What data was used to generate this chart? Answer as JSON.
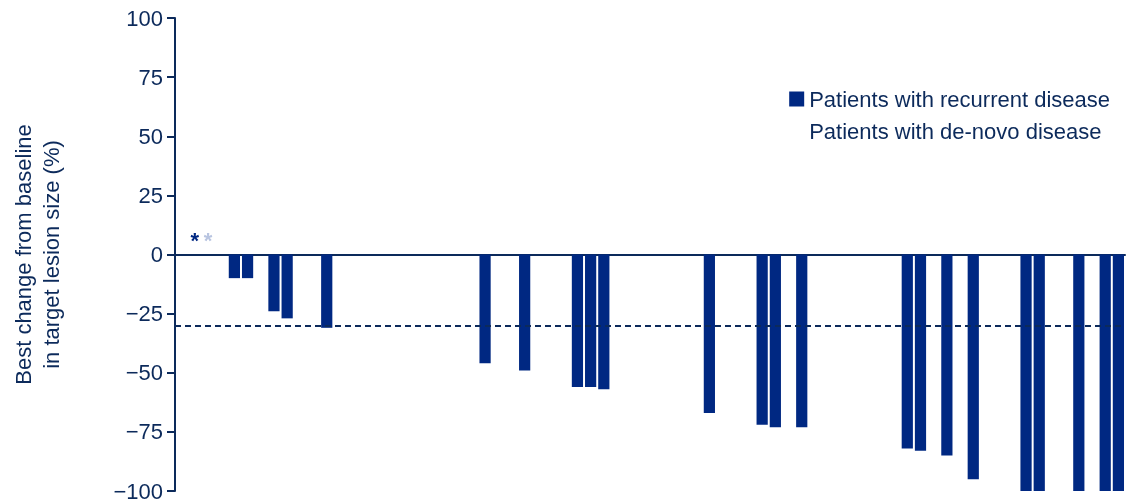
{
  "chart_data": {
    "type": "bar",
    "ylabel": "Best change from baseline\nin target lesion size (%)",
    "categories": [
      null,
      null,
      null,
      null,
      null,
      null,
      null,
      null,
      null,
      null,
      null,
      null,
      null,
      null,
      null,
      null,
      null,
      null,
      null,
      null,
      null,
      null,
      null,
      null,
      null,
      null,
      null,
      null,
      null,
      null,
      null,
      null,
      null,
      null,
      null,
      null,
      null,
      null,
      null,
      null,
      null,
      null,
      null,
      null,
      null,
      null,
      null,
      null,
      null,
      null,
      null,
      null,
      null,
      null,
      null,
      null,
      null,
      null,
      null,
      null,
      null,
      null,
      null,
      null,
      null,
      null,
      null,
      null,
      null,
      null,
      null,
      null
    ],
    "series": [
      {
        "name": "Patients with recurrent disease",
        "color": "#002882",
        "values": [
          null,
          null,
          null,
          null,
          -10,
          -10,
          null,
          -24,
          -27,
          null,
          null,
          -31,
          null,
          null,
          null,
          null,
          null,
          null,
          null,
          null,
          null,
          null,
          null,
          -46,
          null,
          null,
          -49,
          null,
          null,
          null,
          -56,
          -56,
          -57,
          null,
          null,
          null,
          null,
          null,
          null,
          null,
          -67,
          null,
          null,
          null,
          -72,
          -73,
          null,
          -73,
          null,
          null,
          null,
          null,
          null,
          null,
          null,
          -82,
          -83,
          null,
          -85,
          null,
          -95,
          null,
          null,
          null,
          -100,
          -100,
          null,
          null,
          -100,
          null,
          -100,
          -100
        ]
      },
      {
        "name": "Patients with de-novo disease",
        "values": [
          null,
          null,
          null,
          null,
          null,
          null,
          null,
          null,
          null,
          null,
          null,
          null,
          null,
          null,
          null,
          null,
          null,
          null,
          null,
          null,
          null,
          null,
          null,
          null,
          null,
          null,
          null,
          null,
          null,
          null,
          null,
          null,
          null,
          null,
          null,
          null,
          null,
          null,
          null,
          null,
          null,
          null,
          null,
          null,
          null,
          null,
          null,
          null,
          null,
          null,
          null,
          null,
          null,
          null,
          null,
          null,
          null,
          null,
          null,
          null,
          null,
          null,
          null,
          null,
          null,
          null,
          null,
          null,
          null,
          null,
          null,
          null
        ]
      }
    ],
    "annotations": [
      "*",
      "*"
    ],
    "ylim": [
      -100,
      100
    ],
    "yticks": [
      {
        "value": -100,
        "label": "−100"
      },
      {
        "value": -75,
        "label": "−75"
      },
      {
        "value": -50,
        "label": "−50"
      },
      {
        "value": -25,
        "label": "−25"
      },
      0,
      25,
      50,
      75,
      100
    ],
    "ref_lines": [
      {
        "axis": "y",
        "value": -30,
        "color": "#0c2a5b",
        "line_style": "dashed"
      }
    ],
    "grid": false,
    "legend": "top right"
  }
}
